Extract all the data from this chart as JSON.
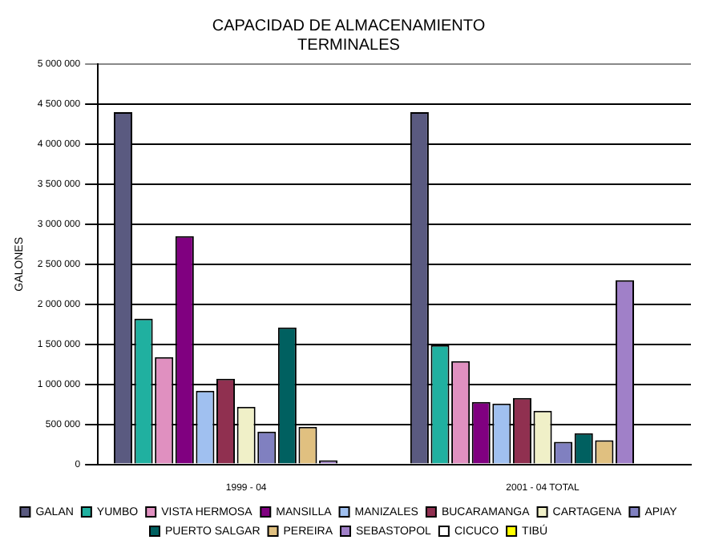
{
  "chart_data": {
    "type": "bar",
    "title": "CAPACIDAD DE ALMACENAMIENTO\nTERMINALES",
    "ylabel": "GALONES",
    "categories": [
      "1999 - 04",
      "2001 - 04 TOTAL"
    ],
    "series": [
      {
        "name": "GALAN",
        "color": "#5a5a80",
        "values": [
          4400000,
          4400000
        ]
      },
      {
        "name": "YUMBO",
        "color": "#20b0a0",
        "values": [
          1820000,
          1490000
        ]
      },
      {
        "name": "VISTA HERMOSA",
        "color": "#e090c0",
        "values": [
          1340000,
          1290000
        ]
      },
      {
        "name": "MANSILLA",
        "color": "#800080",
        "values": [
          2850000,
          780000
        ]
      },
      {
        "name": "MANIZALES",
        "color": "#a0c0f0",
        "values": [
          920000,
          760000
        ]
      },
      {
        "name": "BUCARAMANGA",
        "color": "#903050",
        "values": [
          1070000,
          830000
        ]
      },
      {
        "name": "CARTAGENA",
        "color": "#f0f0c8",
        "values": [
          720000,
          670000
        ]
      },
      {
        "name": "APIAY",
        "color": "#8080c0",
        "values": [
          410000,
          280000
        ]
      },
      {
        "name": "PUERTO SALGAR",
        "color": "#006060",
        "values": [
          1710000,
          390000
        ]
      },
      {
        "name": "PEREIRA",
        "color": "#e0c080",
        "values": [
          470000,
          300000
        ]
      },
      {
        "name": "SEBASTOPOL",
        "color": "#a080c8",
        "values": [
          50000,
          2300000
        ]
      },
      {
        "name": "CICUCO",
        "color": "#ffffff",
        "values": [
          null,
          null
        ]
      },
      {
        "name": "TIBÚ",
        "color": "#ffff00",
        "values": [
          null,
          null
        ]
      }
    ],
    "ylim": [
      0,
      5000000
    ],
    "yticks": [
      0,
      {
        "value": 500000,
        "label": "500 000"
      },
      {
        "value": 1000000,
        "label": "1 000 000"
      },
      {
        "value": 1500000,
        "label": "1 500 000"
      },
      {
        "value": 2000000,
        "label": "2 000 000"
      },
      {
        "value": 2500000,
        "label": "2 500 000"
      },
      {
        "value": 3000000,
        "label": "3 000 000"
      },
      {
        "value": 3500000,
        "label": "3 500 000"
      },
      {
        "value": 4000000,
        "label": "4 000 000"
      },
      {
        "value": 4500000,
        "label": "4 500 000"
      },
      {
        "value": 5000000,
        "label": "5 000 000"
      }
    ],
    "grid": "y",
    "legend": "bottom"
  }
}
